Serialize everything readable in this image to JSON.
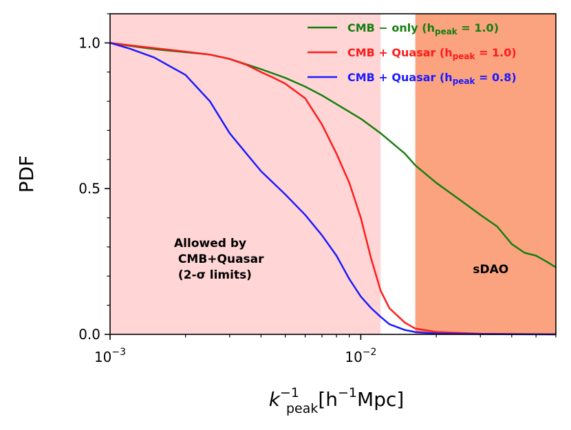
{
  "chart_data": {
    "type": "line",
    "xscale": "log",
    "xlim": [
      0.001,
      0.06
    ],
    "ylim": [
      0.0,
      1.1
    ],
    "ylabel": "PDF",
    "xlabel": {
      "base": "k",
      "sup": "−1",
      "sub": "peak",
      "unit_pre": "[h",
      "unit_sup": "−1",
      "unit_post": "Mpc]"
    },
    "x_ticks": [
      {
        "value": 0.001,
        "base": "10",
        "exp": "−3"
      },
      {
        "value": 0.01,
        "base": "10",
        "exp": "−2"
      }
    ],
    "y_ticks": [
      {
        "value": 0.0,
        "label": "0.0"
      },
      {
        "value": 0.5,
        "label": "0.5"
      },
      {
        "value": 1.0,
        "label": "1.0"
      }
    ],
    "regions": [
      {
        "name": "Allowed by CMB+Quasar (2-σ limits)",
        "x_from": 0.001,
        "x_to": 0.012,
        "color": "#ffd5d5"
      },
      {
        "name": "sDAO",
        "x_from": 0.0165,
        "x_to": 0.06,
        "color": "#fba27f"
      }
    ],
    "annotations": [
      {
        "lines": [
          "Allowed by",
          " CMB+Quasar",
          " (2-σ limits)"
        ],
        "x": 0.0018,
        "y": 0.3
      },
      {
        "lines": [
          "sDAO"
        ],
        "x": 0.028,
        "y": 0.21
      }
    ],
    "series": [
      {
        "name": "CMB − only (h_peak = 1.0)",
        "legend": {
          "main": "CMB − only (h",
          "sub": "peak",
          "tail": " = 1.0)"
        },
        "color": "#147f0e",
        "points": [
          [
            0.001,
            1.0
          ],
          [
            0.0012,
            0.99
          ],
          [
            0.0014,
            0.982
          ],
          [
            0.0016,
            0.976
          ],
          [
            0.002,
            0.968
          ],
          [
            0.0025,
            0.96
          ],
          [
            0.003,
            0.945
          ],
          [
            0.004,
            0.91
          ],
          [
            0.005,
            0.88
          ],
          [
            0.006,
            0.85
          ],
          [
            0.007,
            0.82
          ],
          [
            0.008,
            0.79
          ],
          [
            0.01,
            0.74
          ],
          [
            0.012,
            0.69
          ],
          [
            0.015,
            0.62
          ],
          [
            0.0165,
            0.58
          ],
          [
            0.02,
            0.52
          ],
          [
            0.025,
            0.46
          ],
          [
            0.03,
            0.41
          ],
          [
            0.035,
            0.37
          ],
          [
            0.04,
            0.31
          ],
          [
            0.045,
            0.28
          ],
          [
            0.05,
            0.27
          ],
          [
            0.055,
            0.25
          ],
          [
            0.06,
            0.23
          ]
        ]
      },
      {
        "name": "CMB + Quasar (h_peak = 1.0)",
        "legend": {
          "main": "CMB + Quasar (h",
          "sub": "peak",
          "tail": " = 1.0)"
        },
        "color": "#ff1a1a",
        "points": [
          [
            0.001,
            1.0
          ],
          [
            0.0014,
            0.985
          ],
          [
            0.002,
            0.97
          ],
          [
            0.0025,
            0.96
          ],
          [
            0.003,
            0.945
          ],
          [
            0.0035,
            0.925
          ],
          [
            0.004,
            0.9
          ],
          [
            0.0045,
            0.88
          ],
          [
            0.005,
            0.86
          ],
          [
            0.006,
            0.81
          ],
          [
            0.007,
            0.72
          ],
          [
            0.008,
            0.62
          ],
          [
            0.009,
            0.52
          ],
          [
            0.01,
            0.4
          ],
          [
            0.011,
            0.26
          ],
          [
            0.012,
            0.15
          ],
          [
            0.013,
            0.09
          ],
          [
            0.015,
            0.04
          ],
          [
            0.0165,
            0.02
          ],
          [
            0.02,
            0.008
          ],
          [
            0.03,
            0.002
          ],
          [
            0.06,
            0.0
          ]
        ]
      },
      {
        "name": "CMB + Quasar (h_peak = 0.8)",
        "legend": {
          "main": "CMB + Quasar (h",
          "sub": "peak",
          "tail": " = 0.8)"
        },
        "color": "#1a1aff",
        "points": [
          [
            0.001,
            1.0
          ],
          [
            0.0012,
            0.98
          ],
          [
            0.0015,
            0.95
          ],
          [
            0.002,
            0.89
          ],
          [
            0.0025,
            0.8
          ],
          [
            0.003,
            0.69
          ],
          [
            0.0035,
            0.62
          ],
          [
            0.004,
            0.56
          ],
          [
            0.005,
            0.48
          ],
          [
            0.006,
            0.41
          ],
          [
            0.007,
            0.34
          ],
          [
            0.008,
            0.27
          ],
          [
            0.009,
            0.19
          ],
          [
            0.01,
            0.13
          ],
          [
            0.011,
            0.09
          ],
          [
            0.012,
            0.06
          ],
          [
            0.013,
            0.035
          ],
          [
            0.015,
            0.015
          ],
          [
            0.0165,
            0.008
          ],
          [
            0.02,
            0.003
          ],
          [
            0.03,
            0.001
          ],
          [
            0.06,
            0.0
          ]
        ]
      }
    ]
  }
}
